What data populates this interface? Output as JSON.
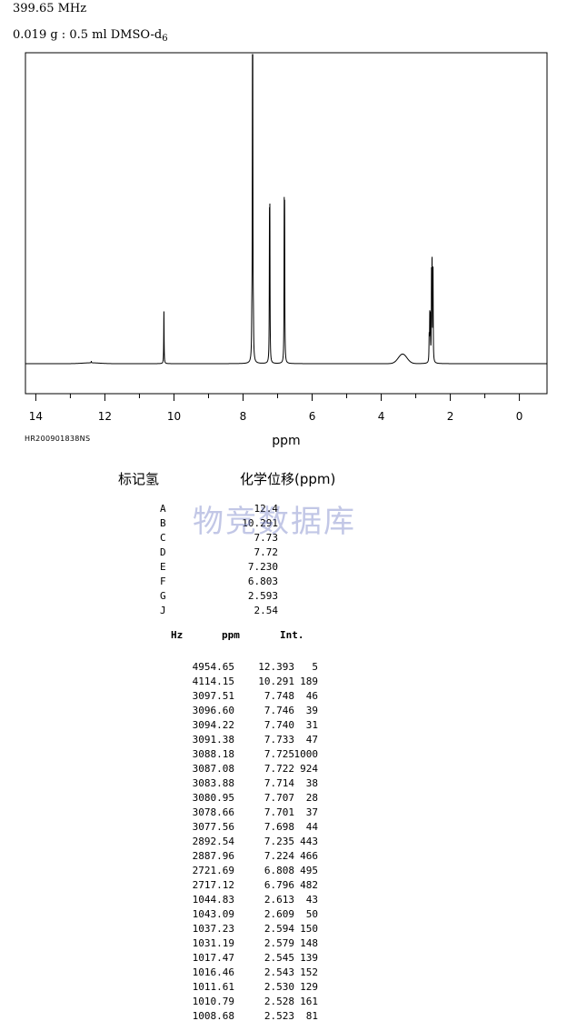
{
  "header": {
    "frequency": "399.65 MHz",
    "sample_main": "0.019 g : 0.5 ml DMSO-d",
    "sample_sub": "6"
  },
  "sheet_id": "HR200901838NS",
  "watermark": "物竞数据库",
  "chart_data": {
    "type": "line",
    "xlabel": "ppm",
    "xlim": [
      14.3,
      -0.8
    ],
    "x_ticks": [
      14,
      12,
      10,
      8,
      6,
      4,
      2,
      0
    ],
    "x_minor_step": 1,
    "grid": false,
    "legend": "none",
    "baseline_int": 0,
    "peak_max_int": 1000,
    "peaks": [
      {
        "ppm": 12.393,
        "int": 5
      },
      {
        "ppm": 10.291,
        "int": 189
      },
      {
        "ppm": 7.748,
        "int": 46
      },
      {
        "ppm": 7.746,
        "int": 39
      },
      {
        "ppm": 7.74,
        "int": 31
      },
      {
        "ppm": 7.733,
        "int": 47
      },
      {
        "ppm": 7.725,
        "int": 1000
      },
      {
        "ppm": 7.722,
        "int": 924
      },
      {
        "ppm": 7.714,
        "int": 38
      },
      {
        "ppm": 7.707,
        "int": 28
      },
      {
        "ppm": 7.701,
        "int": 37
      },
      {
        "ppm": 7.698,
        "int": 44
      },
      {
        "ppm": 7.235,
        "int": 443
      },
      {
        "ppm": 7.224,
        "int": 466
      },
      {
        "ppm": 6.808,
        "int": 495
      },
      {
        "ppm": 6.796,
        "int": 482
      },
      {
        "ppm": 2.613,
        "int": 43
      },
      {
        "ppm": 2.609,
        "int": 50
      },
      {
        "ppm": 2.594,
        "int": 150
      },
      {
        "ppm": 2.579,
        "int": 148
      },
      {
        "ppm": 2.545,
        "int": 139
      },
      {
        "ppm": 2.543,
        "int": 152
      },
      {
        "ppm": 2.53,
        "int": 129
      },
      {
        "ppm": 2.528,
        "int": 161
      },
      {
        "ppm": 2.523,
        "int": 81
      },
      {
        "ppm": 2.5,
        "int": 320
      }
    ],
    "broad_peaks": [
      {
        "ppm": 3.38,
        "int": 34,
        "width": 0.25
      },
      {
        "ppm": 12.4,
        "int": 3,
        "width": 0.5
      }
    ],
    "line_color": "#000000"
  },
  "assignments": {
    "label_head": "标记氢",
    "shift_head": "化学位移(ppm)",
    "rows": [
      {
        "label": "A",
        "shift": "12.4"
      },
      {
        "label": "B",
        "shift": "10.291"
      },
      {
        "label": "C",
        "shift": "7.73"
      },
      {
        "label": "D",
        "shift": "7.72"
      },
      {
        "label": "E",
        "shift": "7.230"
      },
      {
        "label": "F",
        "shift": "6.803"
      },
      {
        "label": "G",
        "shift": "2.593"
      },
      {
        "label": "J",
        "shift": "2.54"
      }
    ]
  },
  "peak_table": {
    "head_hz": "Hz",
    "head_ppm": "ppm",
    "head_int": "Int.",
    "rows": [
      {
        "hz": "4954.65",
        "ppm": "12.393",
        "int": "5"
      },
      {
        "hz": "4114.15",
        "ppm": "10.291",
        "int": "189"
      },
      {
        "hz": "3097.51",
        "ppm": "7.748",
        "int": "46"
      },
      {
        "hz": "3096.60",
        "ppm": "7.746",
        "int": "39"
      },
      {
        "hz": "3094.22",
        "ppm": "7.740",
        "int": "31"
      },
      {
        "hz": "3091.38",
        "ppm": "7.733",
        "int": "47"
      },
      {
        "hz": "3088.18",
        "ppm": "7.725",
        "int": "1000"
      },
      {
        "hz": "3087.08",
        "ppm": "7.722",
        "int": "924"
      },
      {
        "hz": "3083.88",
        "ppm": "7.714",
        "int": "38"
      },
      {
        "hz": "3080.95",
        "ppm": "7.707",
        "int": "28"
      },
      {
        "hz": "3078.66",
        "ppm": "7.701",
        "int": "37"
      },
      {
        "hz": "3077.56",
        "ppm": "7.698",
        "int": "44"
      },
      {
        "hz": "2892.54",
        "ppm": "7.235",
        "int": "443"
      },
      {
        "hz": "2887.96",
        "ppm": "7.224",
        "int": "466"
      },
      {
        "hz": "2721.69",
        "ppm": "6.808",
        "int": "495"
      },
      {
        "hz": "2717.12",
        "ppm": "6.796",
        "int": "482"
      },
      {
        "hz": "1044.83",
        "ppm": "2.613",
        "int": "43"
      },
      {
        "hz": "1043.09",
        "ppm": "2.609",
        "int": "50"
      },
      {
        "hz": "1037.23",
        "ppm": "2.594",
        "int": "150"
      },
      {
        "hz": "1031.19",
        "ppm": "2.579",
        "int": "148"
      },
      {
        "hz": "1017.47",
        "ppm": "2.545",
        "int": "139"
      },
      {
        "hz": "1016.46",
        "ppm": "2.543",
        "int": "152"
      },
      {
        "hz": "1011.61",
        "ppm": "2.530",
        "int": "129"
      },
      {
        "hz": "1010.79",
        "ppm": "2.528",
        "int": "161"
      },
      {
        "hz": "1008.68",
        "ppm": "2.523",
        "int": "81"
      }
    ]
  }
}
